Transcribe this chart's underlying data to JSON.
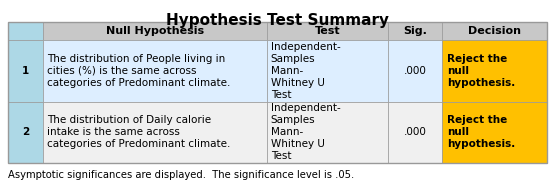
{
  "title": "Hypothesis Test Summary",
  "title_fontsize": 11,
  "header": [
    "Null Hypothesis",
    "Test",
    "Sig.",
    "Decision"
  ],
  "rows": [
    {
      "num": "1",
      "null_hyp": "The distribution of People living in\ncities (%) is the same across\ncategories of Predominant climate.",
      "test": "Independent-\nSamples\nMann-\nWhitney U\nTest",
      "sig": ".000",
      "decision": "Reject the\nnull\nhypothesis."
    },
    {
      "num": "2",
      "null_hyp": "The distribution of Daily calorie\nintake is the same across\ncategories of Predominant climate.",
      "test": "Independent-\nSamples\nMann-\nWhitney U\nTest",
      "sig": ".000",
      "decision": "Reject the\nnull\nhypothesis."
    }
  ],
  "footer": "Asymptotic significances are displayed.  The significance level is .05.",
  "header_bg": "#c8c8c8",
  "header_left_bg": "#add8e6",
  "row1_bg": "#ddeeff",
  "row2_bg": "#f0f0f0",
  "decision_bg": "#FFC000",
  "border_color": "#999999",
  "text_color": "#000000",
  "header_fontsize": 8,
  "body_fontsize": 7.5,
  "footer_fontsize": 7.2
}
